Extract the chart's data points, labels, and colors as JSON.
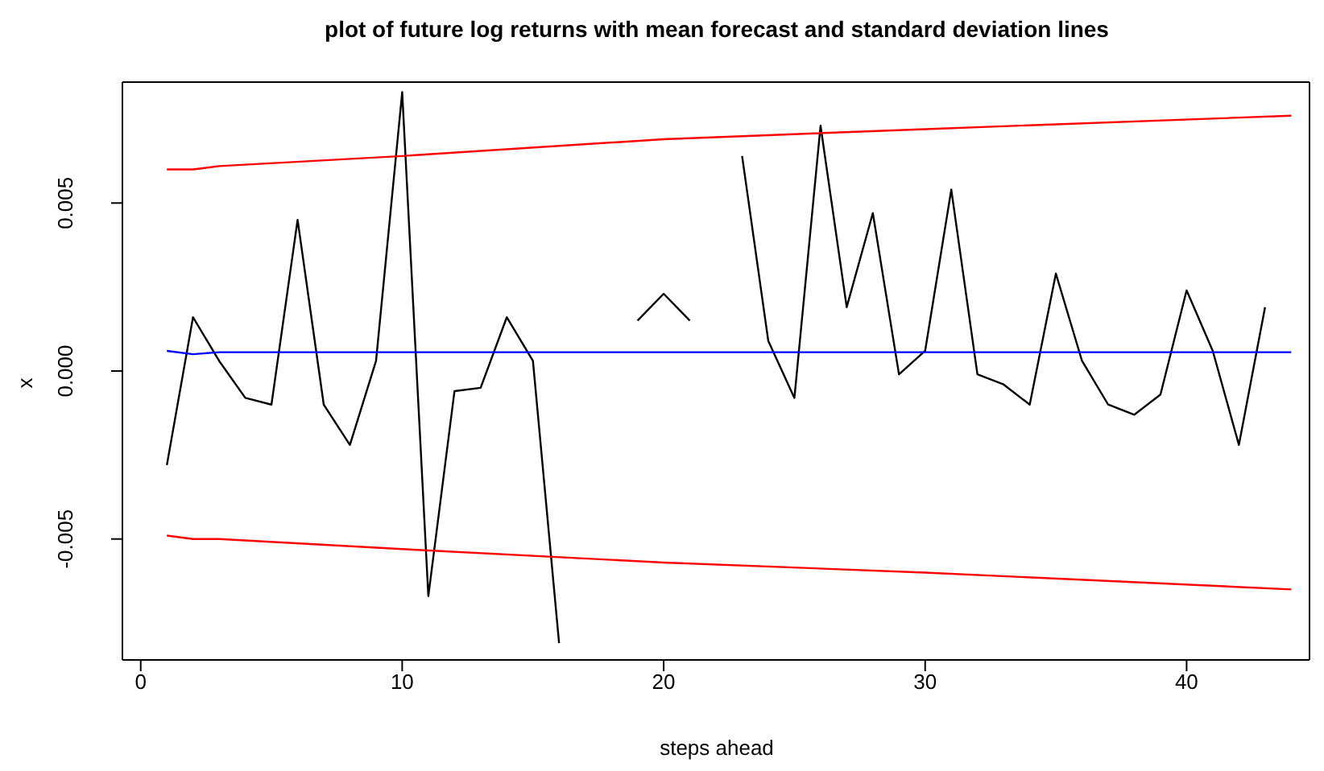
{
  "chart_data": {
    "type": "line",
    "title": "plot of future log returns with mean forecast and standard deviation lines",
    "xlabel": "steps ahead",
    "ylabel": "x",
    "xlim": [
      -0.7,
      44.7
    ],
    "xticks": [
      0,
      10,
      20,
      30,
      40
    ],
    "ylim": [
      -0.0086,
      0.0086
    ],
    "yticks": [
      {
        "value": -0.005,
        "label": "-0.005"
      },
      {
        "value": 0,
        "label": "0.000"
      },
      {
        "value": 0.005,
        "label": "0.005"
      }
    ],
    "marker": "none",
    "line_style": "solid",
    "series": [
      {
        "color": "#000000",
        "x": [
          1,
          2,
          3,
          4,
          5,
          6,
          7,
          8,
          9,
          10,
          11,
          12,
          13,
          14,
          15,
          16,
          17,
          18,
          19,
          20,
          21,
          22,
          23,
          24,
          25,
          26,
          27,
          28,
          29,
          30,
          31,
          32,
          33,
          34,
          35,
          36,
          37,
          38,
          39,
          40,
          41,
          42,
          43
        ],
        "values": [
          -0.0028,
          0.0016,
          0.0003,
          -0.0008,
          -0.001,
          0.0045,
          -0.001,
          -0.0022,
          0.0003,
          0.0083,
          -0.0067,
          -0.0006,
          -0.0005,
          0.0016,
          0.0003,
          -0.0081,
          null,
          null,
          0.0015,
          0.0023,
          0.0015,
          null,
          0.0064,
          0.0009,
          -0.0008,
          0.0073,
          0.0019,
          0.0047,
          -0.0001,
          0.0006,
          0.0054,
          -0.0001,
          -0.0004,
          -0.001,
          0.0029,
          0.0003,
          -0.001,
          -0.0013,
          -0.0007,
          0.0024,
          0.0006,
          -0.0022,
          0.0019
        ]
      },
      {
        "color": "#0000ff",
        "x": [
          1,
          2,
          3,
          44
        ],
        "values": [
          0.0006,
          0.0005,
          0.00056,
          0.00056
        ]
      },
      {
        "color": "#ff0000",
        "x": [
          1,
          2,
          3,
          10,
          20,
          30,
          44
        ],
        "values": [
          0.006,
          0.006,
          0.0061,
          0.0064,
          0.0069,
          0.0072,
          0.0076
        ]
      },
      {
        "color": "#ff0000",
        "x": [
          1,
          2,
          3,
          10,
          20,
          30,
          44
        ],
        "values": [
          -0.0049,
          -0.005,
          -0.005,
          -0.0053,
          -0.0057,
          -0.006,
          -0.0065
        ]
      }
    ]
  }
}
